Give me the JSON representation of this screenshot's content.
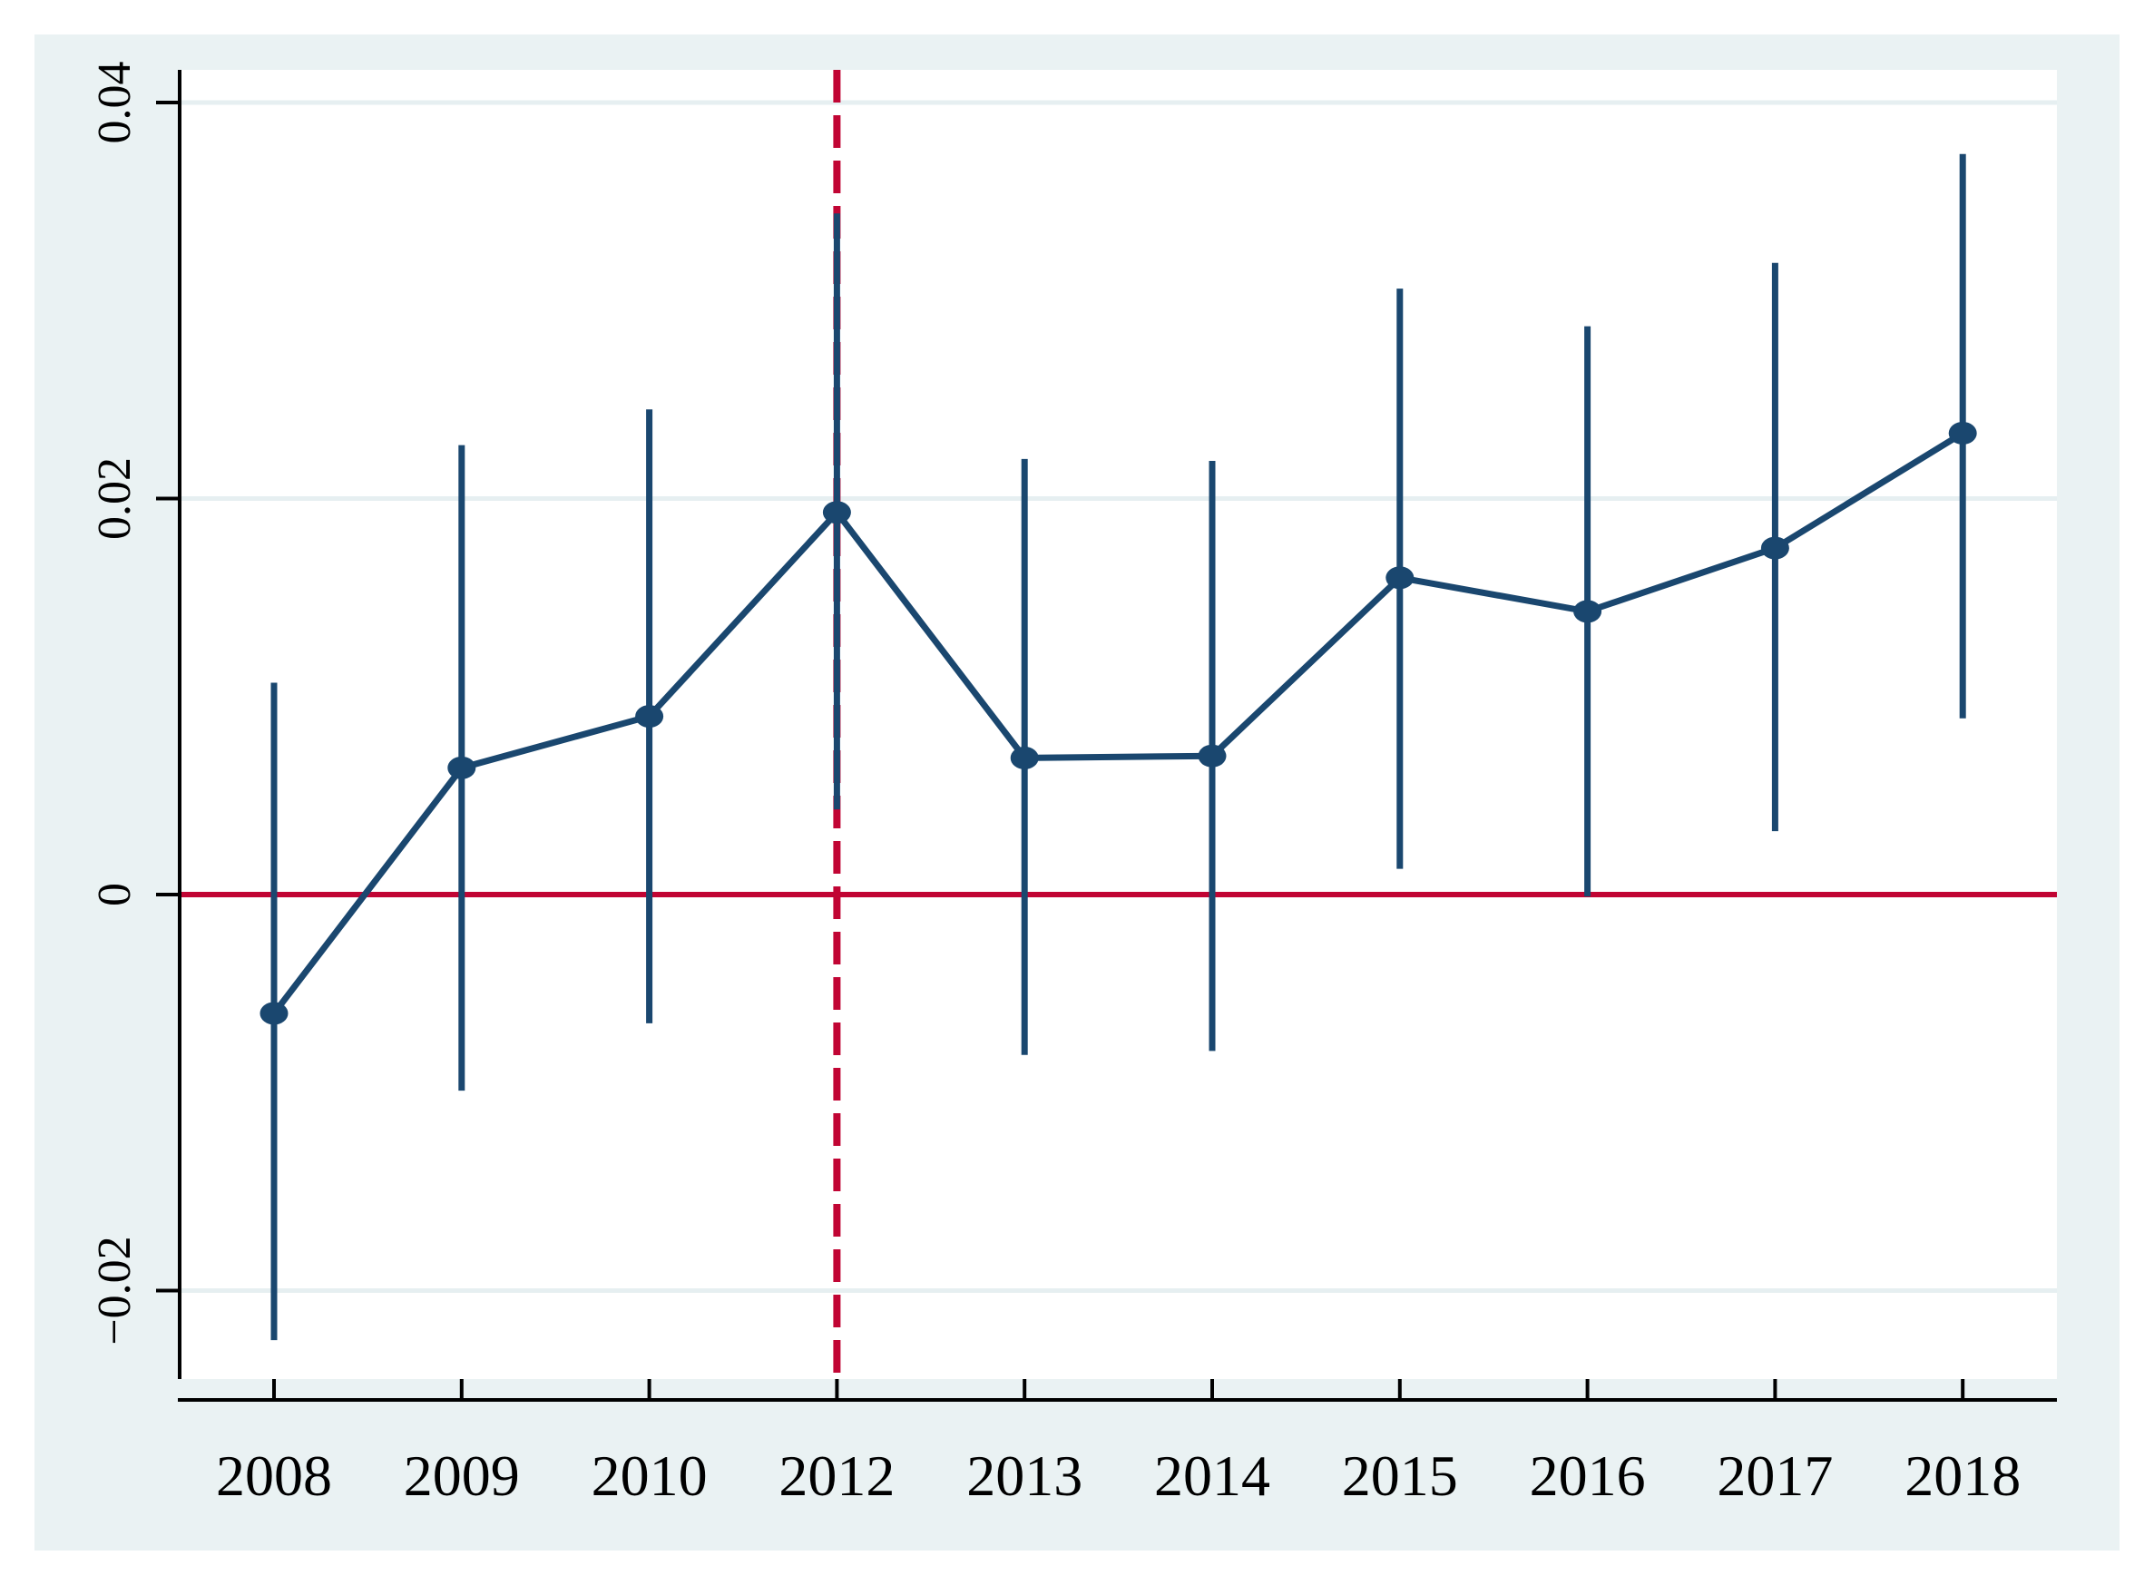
{
  "chart_data": {
    "type": "line",
    "subtype": "coefficient-plot-with-confidence-intervals",
    "title": "",
    "xlabel": "",
    "ylabel": "",
    "categories": [
      "2008",
      "2009",
      "2010",
      "2012",
      "2013",
      "2014",
      "2015",
      "2016",
      "2017",
      "2018"
    ],
    "series": [
      {
        "name": "point-estimate",
        "values": [
          -0.006,
          0.0064,
          0.009,
          0.0193,
          0.0069,
          0.007,
          0.016,
          0.0143,
          0.0175,
          0.0233
        ],
        "ci_low": [
          -0.0225,
          -0.0099,
          -0.0065,
          0.0043,
          -0.0081,
          -0.0079,
          0.0013,
          -0.0001,
          0.0032,
          0.0089
        ],
        "ci_high": [
          0.0107,
          0.0227,
          0.0245,
          0.0344,
          0.022,
          0.0219,
          0.0306,
          0.0287,
          0.0319,
          0.0374
        ]
      }
    ],
    "y_ticks": [
      {
        "value": -0.02,
        "label": "−0.02"
      },
      {
        "value": 0,
        "label": "0"
      },
      {
        "value": 0.02,
        "label": "0.02"
      },
      {
        "value": 0.04,
        "label": "0.04"
      }
    ],
    "ylim": [
      -0.0245,
      0.0417
    ],
    "grid": true,
    "legend": "none",
    "reference_lines": {
      "hline_value": 0,
      "vline_category": "2012",
      "vline_style": "dashed"
    }
  },
  "colors": {
    "page_background": "#ffffff",
    "panel_background": "#eaf2f3",
    "plot_background": "#ffffff",
    "gridline": "#e6eff1",
    "axis": "#000000",
    "tick_label": "#000000",
    "series": "#1a476f",
    "reference_line": "#c10534"
  }
}
